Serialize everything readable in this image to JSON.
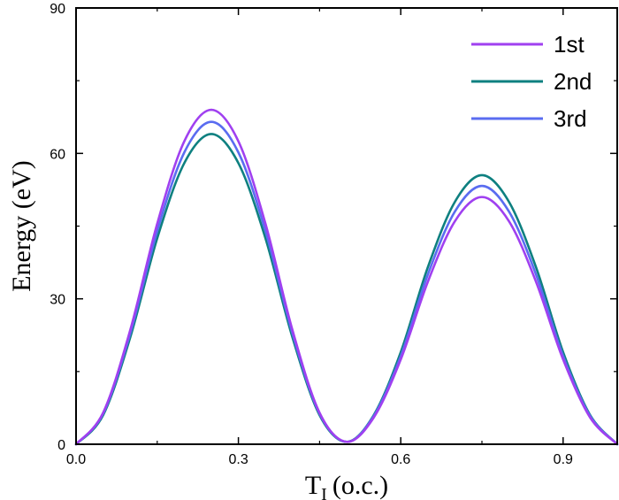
{
  "chart_data": {
    "type": "line",
    "xlabel": "T",
    "xlabel_sub": "I",
    "xlabel_unit": "(o.c.)",
    "ylabel": "Energy (eV)",
    "xlim": [
      0,
      1
    ],
    "ylim": [
      0,
      90
    ],
    "xticks": [
      0.0,
      0.3,
      0.6,
      0.9
    ],
    "xtick_labels": [
      "0.0",
      "0.3",
      "0.6",
      "0.9"
    ],
    "yticks": [
      0,
      30,
      60,
      90
    ],
    "ytick_labels": [
      "0",
      "30",
      "60",
      "90"
    ],
    "grid": false,
    "legend_position": "top-right",
    "series": [
      {
        "name": "1st",
        "color": "#a040f0",
        "x": [
          0.0,
          0.05,
          0.1,
          0.15,
          0.2,
          0.25,
          0.3,
          0.35,
          0.4,
          0.45,
          0.5,
          0.55,
          0.6,
          0.65,
          0.7,
          0.75,
          0.8,
          0.85,
          0.9,
          0.95,
          1.0
        ],
        "y": [
          0,
          6.5,
          23.5,
          45.5,
          62.5,
          69,
          62.5,
          45.5,
          23.5,
          6.5,
          0.5,
          5.5,
          17.5,
          33.5,
          46,
          51,
          46,
          33.5,
          17.5,
          5.5,
          0
        ]
      },
      {
        "name": "2nd",
        "color": "#0e8080",
        "x": [
          0.0,
          0.05,
          0.1,
          0.15,
          0.2,
          0.25,
          0.3,
          0.35,
          0.4,
          0.45,
          0.5,
          0.55,
          0.6,
          0.65,
          0.7,
          0.75,
          0.8,
          0.85,
          0.9,
          0.95,
          1.0
        ],
        "y": [
          0,
          6,
          22,
          42.5,
          58,
          64,
          58,
          42.5,
          22,
          6,
          0.5,
          6,
          19,
          36.5,
          50,
          55.5,
          50,
          36.5,
          19,
          6,
          0
        ]
      },
      {
        "name": "3rd",
        "color": "#5a6cf0",
        "x": [
          0.0,
          0.05,
          0.1,
          0.15,
          0.2,
          0.25,
          0.3,
          0.35,
          0.4,
          0.45,
          0.5,
          0.55,
          0.6,
          0.65,
          0.7,
          0.75,
          0.8,
          0.85,
          0.9,
          0.95,
          1.0
        ],
        "y": [
          0,
          6.3,
          22.8,
          44,
          60.2,
          66.5,
          60.2,
          44,
          22.8,
          6.3,
          0.5,
          5.8,
          18.2,
          35,
          48,
          53.3,
          48,
          35,
          18.2,
          5.8,
          0
        ]
      }
    ]
  }
}
